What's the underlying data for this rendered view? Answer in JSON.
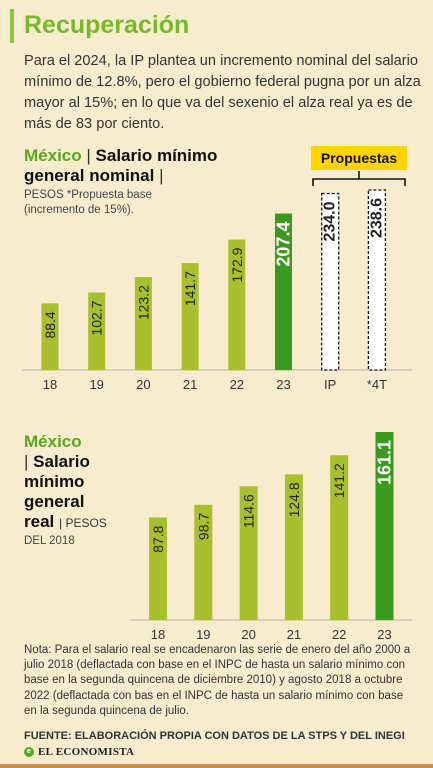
{
  "title": "Recuperación",
  "intro": "Para el 2024, la IP plantea un incremento nominal del salario mínimo de 12.8%, pero el gobierno federal pugna por un alza mayor al 15%; en lo que va del sexenio el alza real ya es de más de 83 por ciento.",
  "chart1_head": {
    "country": "México",
    "separator": "|",
    "title_line1": "Salario mínimo",
    "title_line2": "general nominal",
    "trailing_sep": "|",
    "unit_line1": "PESOS  *Propuesta base",
    "unit_line2": "(incremento de 15%)."
  },
  "chart2_head": {
    "country": "México",
    "separator": "|",
    "line1": "Salario",
    "line2": "mínimo",
    "line3": "general",
    "line4": "real",
    "unit_inline": "PESOS",
    "unit_line2": "DEL 2018"
  },
  "propuestas_label": "Propuestas",
  "colors": {
    "bar": "#a8bf2e",
    "bar_highlight": "#3a9a1e",
    "background": "#f7eccd",
    "accent_green": "#7ab829",
    "badge": "#ffd400"
  },
  "chart_data": [
    {
      "type": "bar",
      "title": "Salario mínimo general nominal",
      "unit": "PESOS",
      "categories": [
        "18",
        "19",
        "20",
        "21",
        "22",
        "23",
        "IP",
        "*4T"
      ],
      "labels": [
        "88.4",
        "102.7",
        "123.2",
        "141.7",
        "172.9",
        "207.4",
        "234.0",
        "238.6"
      ],
      "values": [
        88.4,
        102.7,
        123.2,
        141.7,
        172.9,
        207.4,
        234.0,
        238.6
      ],
      "styles": [
        "normal",
        "normal",
        "normal",
        "normal",
        "normal",
        "highlight",
        "proposal",
        "proposal"
      ],
      "ylim": [
        0,
        250
      ],
      "grid": false,
      "annotation": "Propuestas"
    },
    {
      "type": "bar",
      "title": "Salario mínimo general real",
      "unit": "PESOS DEL 2018",
      "categories": [
        "18",
        "19",
        "20",
        "21",
        "22",
        "23"
      ],
      "labels": [
        "87.8",
        "98.7",
        "114.6",
        "124.8",
        "141.2",
        "161.1"
      ],
      "values": [
        87.8,
        98.7,
        114.6,
        124.8,
        141.2,
        161.1
      ],
      "styles": [
        "normal",
        "normal",
        "normal",
        "normal",
        "normal",
        "highlight"
      ],
      "ylim": [
        0,
        170
      ],
      "grid": false
    }
  ],
  "note": "Nota: Para el salario real se encadenaron las serie de enero del año 2000 a julio 2018 (deflactada con base en el INPC de hasta un salario mínimo con base en la segunda quincena de diciembre 2010) y agosto 2018 a octubre 2022 (deflactada con bas en el INPC de hasta un salario mínimo con base en la segunda quincena de julio.",
  "source": "FUENTE: ELABORACIÓN PROPIA CON DATOS DE LA STPS Y DEL INEGI",
  "brand": "EL ECONOMISTA",
  "brand_mark": "e"
}
